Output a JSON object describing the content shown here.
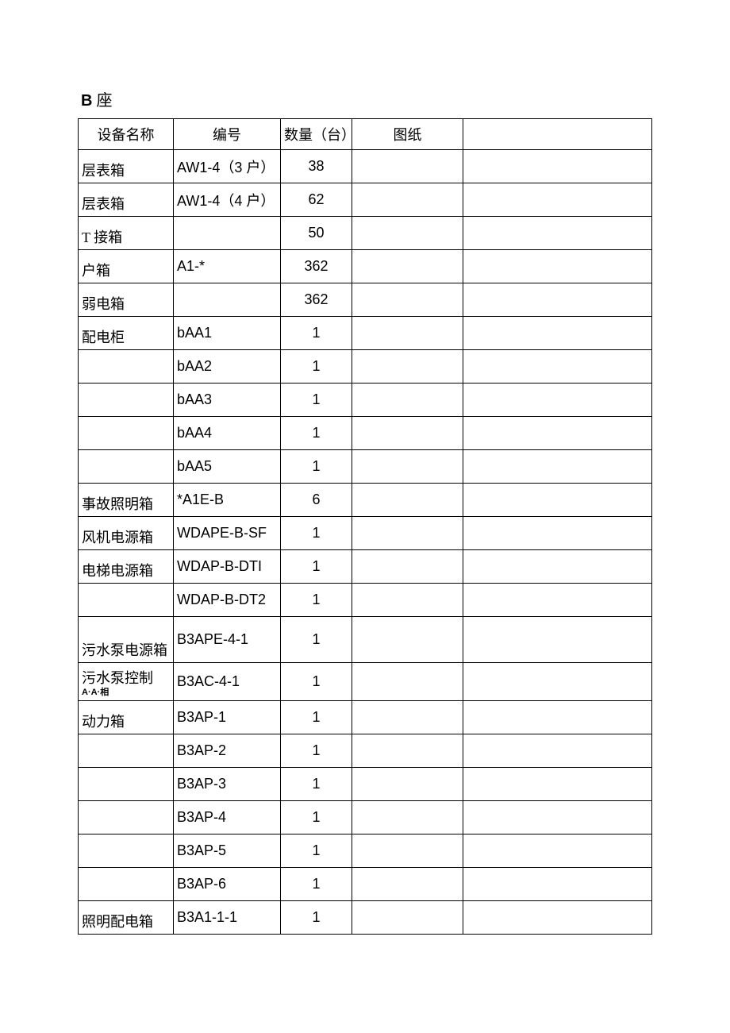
{
  "title_bold": "B",
  "title_rest": " 座",
  "headers": {
    "c1": "设备名称",
    "c2": "编号",
    "c3": "数量（台）",
    "c4": "图纸",
    "c5": ""
  },
  "rows": [
    {
      "c1": "层表箱",
      "c2": "AW1-4（3 户）",
      "c3": "38",
      "c4": "",
      "c5": "",
      "cls": ""
    },
    {
      "c1": "层表箱",
      "c2": "AW1-4（4 户）",
      "c3": "62",
      "c4": "",
      "c5": "",
      "cls": ""
    },
    {
      "c1": "T 接箱",
      "c2": "",
      "c3": "50",
      "c4": "",
      "c5": "",
      "cls": ""
    },
    {
      "c1": "户箱",
      "c2": "A1-*",
      "c3": "362",
      "c4": "",
      "c5": "",
      "cls": ""
    },
    {
      "c1": "弱电箱",
      "c2": "",
      "c3": "362",
      "c4": "",
      "c5": "",
      "cls": ""
    },
    {
      "c1": "配电柜",
      "c2": "bAA1",
      "c3": "1",
      "c4": "",
      "c5": "",
      "cls": ""
    },
    {
      "c1": "",
      "c2": "bAA2",
      "c3": "1",
      "c4": "",
      "c5": "",
      "cls": ""
    },
    {
      "c1": "",
      "c2": "bAA3",
      "c3": "1",
      "c4": "",
      "c5": "",
      "cls": ""
    },
    {
      "c1": "",
      "c2": "bAA4",
      "c3": "1",
      "c4": "",
      "c5": "",
      "cls": ""
    },
    {
      "c1": "",
      "c2": "bAA5",
      "c3": "1",
      "c4": "",
      "c5": "",
      "cls": ""
    },
    {
      "c1": "事故照明箱",
      "c2": "*A1E-B",
      "c3": "6",
      "c4": "",
      "c5": "",
      "cls": ""
    },
    {
      "c1": "风机电源箱",
      "c2": "WDAPE-B-SF",
      "c3": "1",
      "c4": "",
      "c5": "",
      "cls": ""
    },
    {
      "c1": "电梯电源箱",
      "c2": "WDAP-B-DTI",
      "c3": "1",
      "c4": "",
      "c5": "",
      "cls": ""
    },
    {
      "c1": "",
      "c2": "WDAP-B-DT2",
      "c3": "1",
      "c4": "",
      "c5": "",
      "cls": ""
    },
    {
      "c1": "污水泵电源箱",
      "c2": "B3APE-4-1",
      "c3": "1",
      "c4": "",
      "c5": "",
      "cls": "tall"
    },
    {
      "c1": "污水泵控制",
      "c1sub": "A·A·相",
      "c2": "B3AC-4-1",
      "c3": "1",
      "c4": "",
      "c5": "",
      "cls": "med"
    },
    {
      "c1": "动力箱",
      "c2": "B3AP-1",
      "c3": "1",
      "c4": "",
      "c5": "",
      "cls": ""
    },
    {
      "c1": "",
      "c2": "B3AP-2",
      "c3": "1",
      "c4": "",
      "c5": "",
      "cls": ""
    },
    {
      "c1": "",
      "c2": "B3AP-3",
      "c3": "1",
      "c4": "",
      "c5": "",
      "cls": ""
    },
    {
      "c1": "",
      "c2": "B3AP-4",
      "c3": "1",
      "c4": "",
      "c5": "",
      "cls": ""
    },
    {
      "c1": "",
      "c2": "B3AP-5",
      "c3": "1",
      "c4": "",
      "c5": "",
      "cls": ""
    },
    {
      "c1": "",
      "c2": "B3AP-6",
      "c3": "1",
      "c4": "",
      "c5": "",
      "cls": ""
    },
    {
      "c1": "照明配电箱",
      "c2": "B3A1-1-1",
      "c3": "1",
      "c4": "",
      "c5": "",
      "cls": ""
    }
  ]
}
